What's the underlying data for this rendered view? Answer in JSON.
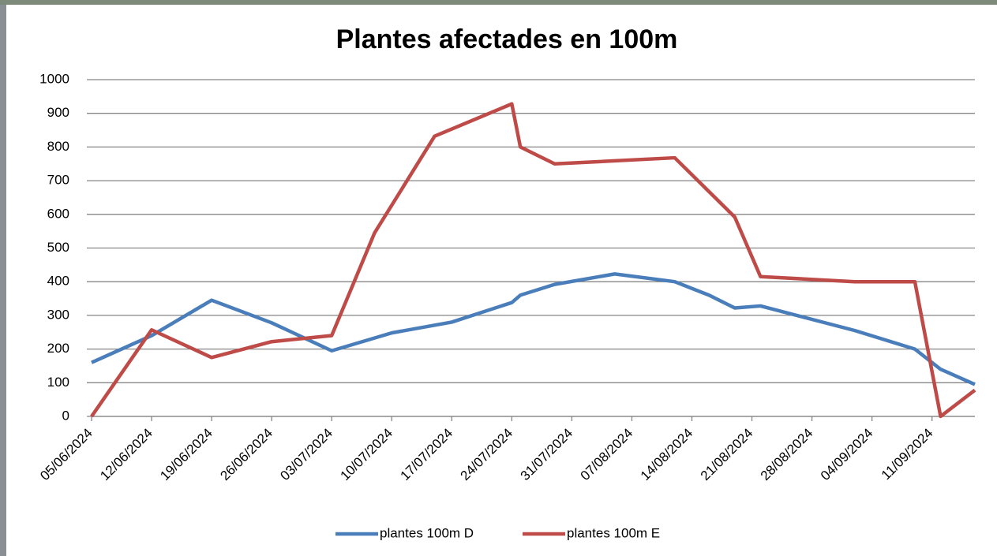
{
  "chart_data": {
    "type": "line",
    "title": "Plantes afectades en 100m",
    "xlim": [
      "05/06/2024",
      "16/09/2024"
    ],
    "xticks": [
      "05/06/2024",
      "12/06/2024",
      "19/06/2024",
      "26/06/2024",
      "03/07/2024",
      "10/07/2024",
      "17/07/2024",
      "24/07/2024",
      "31/07/2024",
      "07/08/2024",
      "14/08/2024",
      "21/08/2024",
      "28/08/2024",
      "04/09/2024",
      "11/09/2024"
    ],
    "ylim": [
      0,
      1000
    ],
    "yticks": [
      0,
      100,
      200,
      300,
      400,
      500,
      600,
      700,
      800,
      900,
      1000
    ],
    "grid": true,
    "legend": "bottom",
    "series": [
      {
        "name": "plantes 100m D",
        "color": "#4a7ebb",
        "x": [
          "05/06/2024",
          "12/06/2024",
          "19/06/2024",
          "26/06/2024",
          "03/07/2024",
          "10/07/2024",
          "17/07/2024",
          "24/07/2024",
          "25/07/2024",
          "29/07/2024",
          "05/08/2024",
          "12/08/2024",
          "16/08/2024",
          "19/08/2024",
          "22/08/2024",
          "02/09/2024",
          "09/09/2024",
          "12/09/2024",
          "16/09/2024"
        ],
        "values": [
          160,
          240,
          345,
          278,
          195,
          248,
          280,
          338,
          360,
          392,
          423,
          400,
          360,
          322,
          328,
          255,
          200,
          140,
          95
        ]
      },
      {
        "name": "plantes 100m E",
        "color": "#be4b48",
        "x": [
          "05/06/2024",
          "12/06/2024",
          "19/06/2024",
          "26/06/2024",
          "03/07/2024",
          "08/07/2024",
          "15/07/2024",
          "24/07/2024",
          "25/07/2024",
          "29/07/2024",
          "12/08/2024",
          "19/08/2024",
          "22/08/2024",
          "02/09/2024",
          "09/09/2024",
          "12/09/2024",
          "16/09/2024"
        ],
        "values": [
          0,
          257,
          175,
          222,
          240,
          545,
          832,
          928,
          800,
          750,
          768,
          592,
          415,
          400,
          400,
          0,
          78
        ]
      }
    ]
  }
}
